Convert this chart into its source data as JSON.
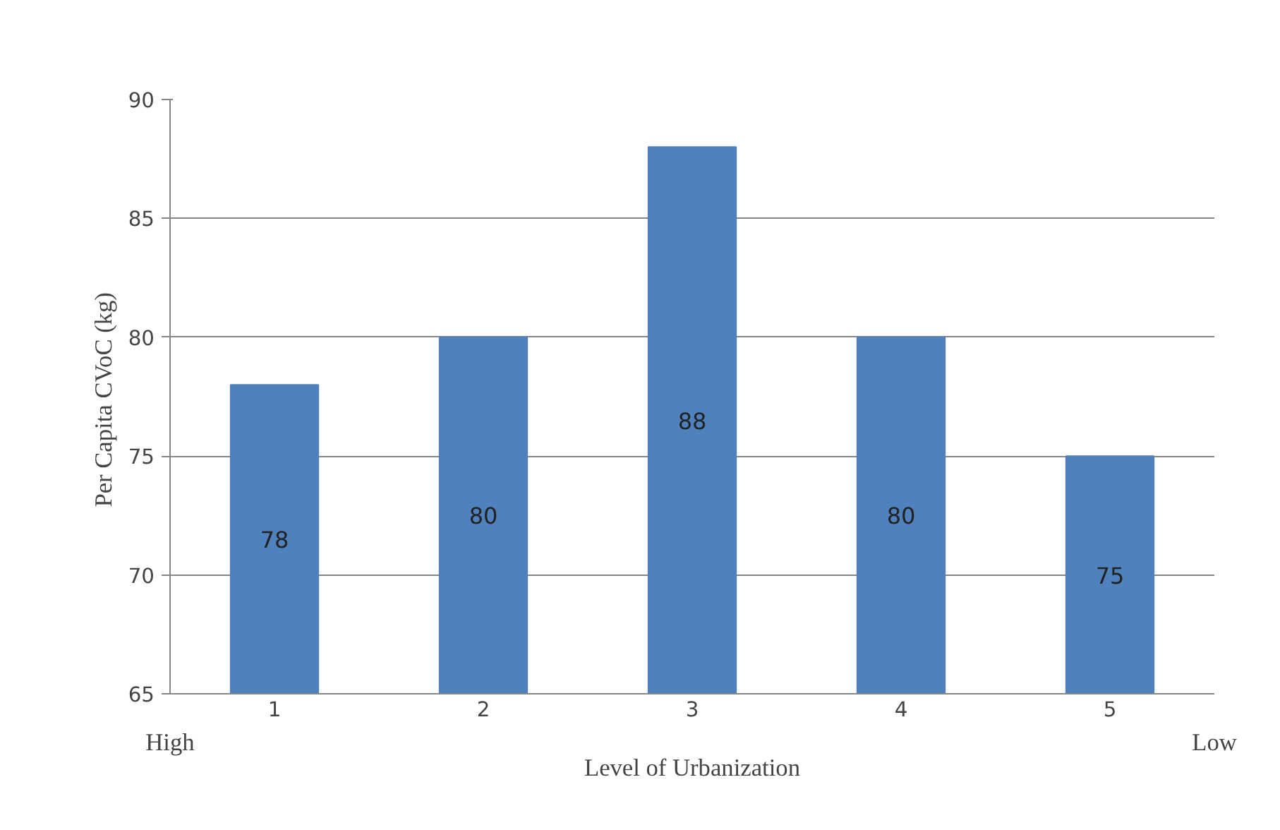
{
  "chart_data": {
    "type": "bar",
    "categories": [
      "1",
      "2",
      "3",
      "4",
      "5"
    ],
    "values": [
      78,
      80,
      88,
      80,
      75
    ],
    "color": "#4f81bd",
    "ylim": [
      65,
      90
    ],
    "yticks": [
      65,
      70,
      75,
      80,
      85,
      90
    ],
    "grid": "y",
    "data_labels": true,
    "xlabel": "Level of Urbanization",
    "ylabel": "Per Capita CVoC  (kg)",
    "annotations": [
      "High",
      "Low"
    ]
  }
}
